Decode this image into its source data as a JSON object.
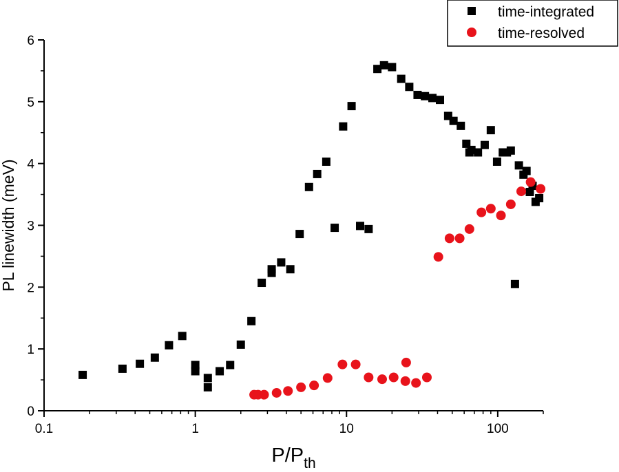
{
  "chart_data": {
    "type": "scatter",
    "xscale": "log",
    "xlabel_main": "P/P",
    "xlabel_sub": "th",
    "ylabel": "PL linewidth (meV)",
    "xlim": [
      0.1,
      200
    ],
    "ylim": [
      0,
      6
    ],
    "xticks": [
      0.1,
      1,
      10,
      100
    ],
    "xtick_labels": [
      "0.1",
      "1",
      "10",
      "100"
    ],
    "yticks": [
      0,
      1,
      2,
      3,
      4,
      5,
      6
    ],
    "ytick_labels": [
      "0",
      "1",
      "2",
      "3",
      "4",
      "5",
      "6"
    ],
    "grid": false,
    "legend_position": "top-right",
    "series": [
      {
        "name": "time-integrated",
        "marker": "square",
        "color": "#000000",
        "points": [
          [
            0.18,
            0.58
          ],
          [
            0.33,
            0.68
          ],
          [
            0.43,
            0.76
          ],
          [
            0.54,
            0.86
          ],
          [
            0.67,
            1.06
          ],
          [
            0.82,
            1.21
          ],
          [
            1.0,
            0.74
          ],
          [
            1.0,
            0.64
          ],
          [
            1.21,
            0.53
          ],
          [
            1.21,
            0.38
          ],
          [
            1.45,
            0.64
          ],
          [
            1.7,
            0.74
          ],
          [
            2.0,
            1.07
          ],
          [
            2.35,
            1.45
          ],
          [
            2.75,
            2.07
          ],
          [
            3.2,
            2.23
          ],
          [
            3.2,
            2.29
          ],
          [
            3.7,
            2.4
          ],
          [
            4.25,
            2.29
          ],
          [
            4.9,
            2.86
          ],
          [
            5.65,
            3.62
          ],
          [
            6.4,
            3.83
          ],
          [
            7.35,
            4.03
          ],
          [
            8.35,
            2.96
          ],
          [
            9.5,
            4.6
          ],
          [
            10.8,
            4.93
          ],
          [
            12.3,
            2.99
          ],
          [
            14.0,
            2.94
          ],
          [
            16.0,
            5.53
          ],
          [
            17.7,
            5.59
          ],
          [
            20.0,
            5.56
          ],
          [
            23.0,
            5.37
          ],
          [
            26.0,
            5.24
          ],
          [
            29.5,
            5.11
          ],
          [
            33.0,
            5.09
          ],
          [
            37.0,
            5.06
          ],
          [
            41.5,
            5.03
          ],
          [
            47.0,
            4.77
          ],
          [
            51.0,
            4.69
          ],
          [
            57.0,
            4.61
          ],
          [
            62.0,
            4.32
          ],
          [
            65.0,
            4.18
          ],
          [
            67.0,
            4.22
          ],
          [
            74.0,
            4.18
          ],
          [
            82.0,
            4.3
          ],
          [
            90.0,
            4.54
          ],
          [
            99.0,
            4.03
          ],
          [
            108.0,
            4.18
          ],
          [
            115.0,
            4.18
          ],
          [
            122.0,
            4.21
          ],
          [
            130.0,
            2.05
          ],
          [
            138.0,
            3.97
          ],
          [
            148.0,
            3.82
          ],
          [
            155.0,
            3.88
          ],
          [
            163.0,
            3.54
          ],
          [
            170.0,
            3.64
          ],
          [
            178.0,
            3.38
          ],
          [
            188.0,
            3.44
          ]
        ]
      },
      {
        "name": "time-resolved",
        "marker": "circle",
        "color": "#e8131b",
        "points": [
          [
            2.45,
            0.26
          ],
          [
            2.6,
            0.26
          ],
          [
            2.85,
            0.26
          ],
          [
            3.45,
            0.29
          ],
          [
            4.1,
            0.32
          ],
          [
            5.0,
            0.38
          ],
          [
            6.1,
            0.41
          ],
          [
            7.5,
            0.53
          ],
          [
            9.4,
            0.75
          ],
          [
            11.5,
            0.75
          ],
          [
            14.0,
            0.54
          ],
          [
            17.2,
            0.51
          ],
          [
            20.5,
            0.54
          ],
          [
            24.5,
            0.48
          ],
          [
            24.8,
            0.78
          ],
          [
            28.8,
            0.45
          ],
          [
            34.0,
            0.54
          ],
          [
            40.5,
            2.49
          ],
          [
            48.0,
            2.79
          ],
          [
            56.0,
            2.79
          ],
          [
            65.0,
            2.94
          ],
          [
            78.0,
            3.21
          ],
          [
            90.0,
            3.27
          ],
          [
            105.0,
            3.16
          ],
          [
            122.0,
            3.34
          ],
          [
            143.0,
            3.55
          ],
          [
            165.0,
            3.7
          ],
          [
            192.0,
            3.59
          ]
        ]
      }
    ]
  }
}
